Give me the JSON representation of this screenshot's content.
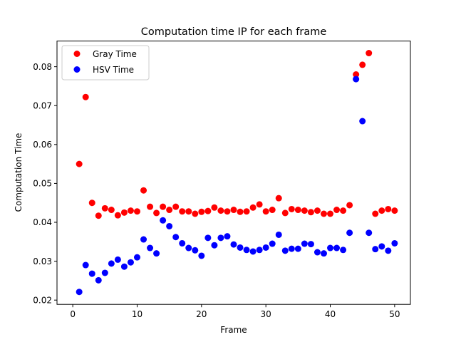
{
  "chart_data": {
    "type": "scatter",
    "title": "Computation time IP for each frame",
    "xlabel": "Frame",
    "ylabel": "Computation Time",
    "xlim": [
      -2.45,
      52.45
    ],
    "ylim": [
      0.0189,
      0.0866
    ],
    "xticks": [
      0,
      10,
      20,
      30,
      40,
      50
    ],
    "yticks": [
      0.02,
      0.03,
      0.04,
      0.05,
      0.06,
      0.07,
      0.08
    ],
    "ytick_labels": [
      "0.02",
      "0.03",
      "0.04",
      "0.05",
      "0.06",
      "0.07",
      "0.08"
    ],
    "grid": false,
    "legend_position": "top-left",
    "x": [
      1,
      2,
      3,
      4,
      5,
      6,
      7,
      8,
      9,
      10,
      11,
      12,
      13,
      14,
      15,
      16,
      17,
      18,
      19,
      20,
      21,
      22,
      23,
      24,
      25,
      26,
      27,
      28,
      29,
      30,
      31,
      32,
      33,
      34,
      35,
      36,
      37,
      38,
      39,
      40,
      41,
      42,
      43,
      44,
      45,
      46,
      47,
      48,
      49,
      50
    ],
    "series": [
      {
        "name": "Gray Time",
        "color": "#ff0000",
        "values": [
          0.055,
          0.0722,
          0.045,
          0.0417,
          0.0436,
          0.0432,
          0.0418,
          0.0425,
          0.043,
          0.0428,
          0.0482,
          0.044,
          0.0424,
          0.044,
          0.0432,
          0.044,
          0.0428,
          0.0428,
          0.0422,
          0.0427,
          0.0429,
          0.0438,
          0.043,
          0.0428,
          0.0432,
          0.0427,
          0.0428,
          0.0438,
          0.0446,
          0.0428,
          0.0432,
          0.0462,
          0.0424,
          0.0434,
          0.0432,
          0.043,
          0.0426,
          0.043,
          0.0422,
          0.0422,
          0.0432,
          0.043,
          0.0444,
          0.078,
          0.0805,
          0.0835,
          0.0422,
          0.043,
          0.0434,
          0.043
        ]
      },
      {
        "name": "HSV Time",
        "color": "#0000ff",
        "values": [
          0.0221,
          0.029,
          0.0268,
          0.0251,
          0.027,
          0.0294,
          0.0304,
          0.0286,
          0.0297,
          0.031,
          0.0356,
          0.0334,
          0.032,
          0.0405,
          0.039,
          0.0362,
          0.0346,
          0.0334,
          0.0328,
          0.0314,
          0.036,
          0.0341,
          0.036,
          0.0364,
          0.0343,
          0.0335,
          0.0329,
          0.0325,
          0.0329,
          0.0335,
          0.0345,
          0.0368,
          0.0327,
          0.0332,
          0.0332,
          0.0345,
          0.0344,
          0.0323,
          0.032,
          0.0334,
          0.0334,
          0.0329,
          0.0373,
          0.0768,
          0.066,
          0.0373,
          0.0331,
          0.0338,
          0.0327,
          0.0346
        ]
      }
    ]
  }
}
